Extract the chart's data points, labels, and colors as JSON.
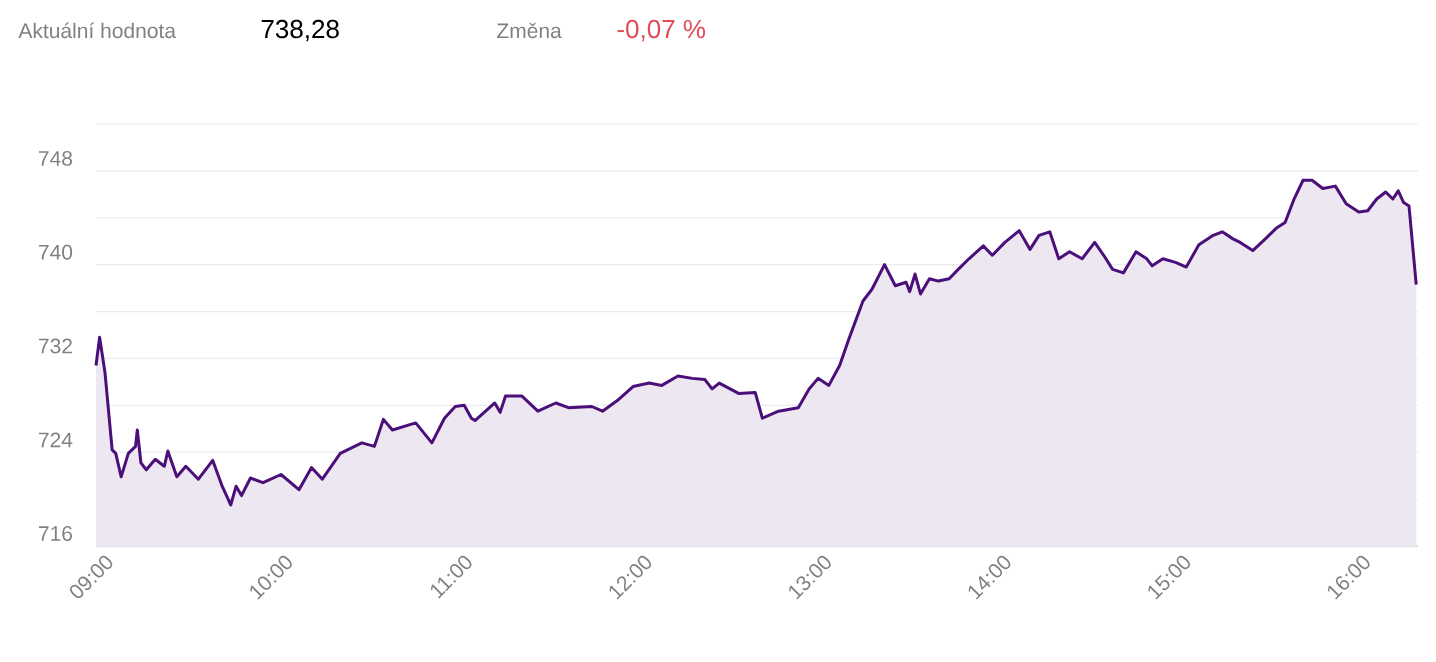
{
  "chart_data": {
    "type": "area",
    "color": "#4b0f7a",
    "annotations": [
      "Aktuální hodnota",
      "738,28",
      "Změna",
      "-0,07 %"
    ],
    "x": [
      9.0,
      9.02,
      9.05,
      9.09,
      9.11,
      9.14,
      9.18,
      9.22,
      9.23,
      9.25,
      9.28,
      9.33,
      9.38,
      9.4,
      9.45,
      9.5,
      9.57,
      9.65,
      9.7,
      9.75,
      9.78,
      9.81,
      9.86,
      9.93,
      10.03,
      10.13,
      10.2,
      10.26,
      10.36,
      10.48,
      10.55,
      10.6,
      10.65,
      10.78,
      10.87,
      10.94,
      11.0,
      11.05,
      11.09,
      11.11,
      11.22,
      11.25,
      11.28,
      11.37,
      11.46,
      11.56,
      11.63,
      11.76,
      11.82,
      11.91,
      11.99,
      12.08,
      12.15,
      12.24,
      12.32,
      12.39,
      12.43,
      12.47,
      12.58,
      12.67,
      12.71,
      12.8,
      12.91,
      12.97,
      13.02,
      13.08,
      13.14,
      13.19,
      13.27,
      13.32,
      13.39,
      13.45,
      13.51,
      13.53,
      13.56,
      13.59,
      13.64,
      13.69,
      13.75,
      13.8,
      13.86,
      13.94,
      13.99,
      14.06,
      14.14,
      14.2,
      14.25,
      14.31,
      14.36,
      14.42,
      14.49,
      14.56,
      14.61,
      14.66,
      14.72,
      14.79,
      14.85,
      14.88,
      14.94,
      15.01,
      15.07,
      15.14,
      15.22,
      15.27,
      15.33,
      15.37,
      15.44,
      15.51,
      15.57,
      15.62,
      15.67,
      15.72,
      15.77,
      15.83,
      15.9,
      15.96,
      16.03,
      16.08,
      16.13,
      16.18,
      16.22,
      16.25,
      16.28,
      16.31,
      16.35
    ],
    "values": [
      731.4,
      733.8,
      730.8,
      724.2,
      723.9,
      721.9,
      723.9,
      724.5,
      725.9,
      723.1,
      722.5,
      723.4,
      722.8,
      724.1,
      721.9,
      722.8,
      721.7,
      723.3,
      721.2,
      719.5,
      721.1,
      720.3,
      721.8,
      721.4,
      722.1,
      720.8,
      722.7,
      721.7,
      723.9,
      724.8,
      724.5,
      726.8,
      725.9,
      726.5,
      724.8,
      726.9,
      727.9,
      728.0,
      726.9,
      726.7,
      728.2,
      727.4,
      728.8,
      728.8,
      727.5,
      728.2,
      727.8,
      727.9,
      727.5,
      728.5,
      729.6,
      729.9,
      729.7,
      730.5,
      730.3,
      730.2,
      729.4,
      729.9,
      729.0,
      729.1,
      726.9,
      727.5,
      727.8,
      729.4,
      730.3,
      729.7,
      731.4,
      733.6,
      736.9,
      737.9,
      740.0,
      738.2,
      738.5,
      737.7,
      739.2,
      737.5,
      738.8,
      738.6,
      738.8,
      739.6,
      740.5,
      741.6,
      740.8,
      741.9,
      742.9,
      741.3,
      742.5,
      742.8,
      740.5,
      741.1,
      740.5,
      741.9,
      740.8,
      739.6,
      739.3,
      741.1,
      740.5,
      739.9,
      740.5,
      740.2,
      739.8,
      741.7,
      742.5,
      742.8,
      742.2,
      741.9,
      741.2,
      742.2,
      743.1,
      743.6,
      745.6,
      747.2,
      747.2,
      746.5,
      746.7,
      745.2,
      744.5,
      744.6,
      745.6,
      746.2,
      745.6,
      746.3,
      745.3,
      745.0,
      738.3
    ],
    "xlim": [
      9,
      16.36
    ],
    "xticks": [
      {
        "value": 9,
        "label": "09:00"
      },
      {
        "value": 10,
        "label": "10:00"
      },
      {
        "value": 11,
        "label": "11:00"
      },
      {
        "value": 12,
        "label": "12:00"
      },
      {
        "value": 13,
        "label": "13:00"
      },
      {
        "value": 14,
        "label": "14:00"
      },
      {
        "value": 15,
        "label": "15:00"
      },
      {
        "value": 16,
        "label": "16:00"
      }
    ],
    "ylim": [
      716,
      752
    ],
    "yticks": [
      716,
      {
        "value": 720,
        "label": null
      },
      724,
      {
        "value": 728,
        "label": null
      },
      732,
      {
        "value": 736,
        "label": null
      },
      740,
      {
        "value": 744,
        "label": null
      },
      748,
      {
        "value": 752,
        "label": null
      }
    ],
    "grid": "y",
    "legend": false,
    "marker": "none",
    "line_style": "solid"
  }
}
